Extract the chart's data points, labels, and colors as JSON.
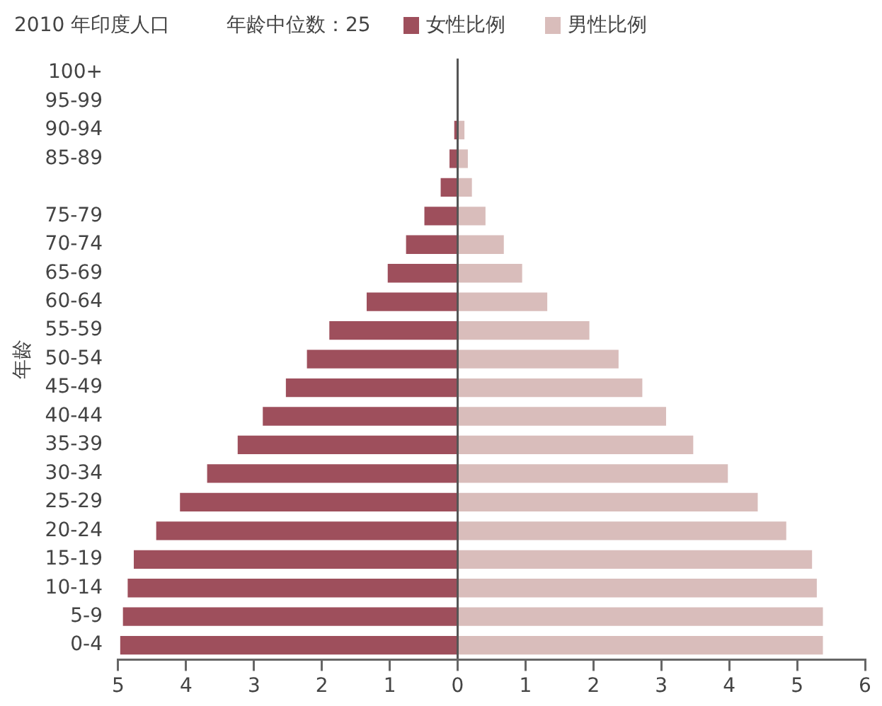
{
  "chart_data": {
    "type": "bar",
    "orientation": "horizontal",
    "stacked": true,
    "title": "2010 年印度人口",
    "ylabel": "年龄",
    "annotations": [
      "年龄中位数：25"
    ],
    "legend": "top",
    "categories": [
      "100+",
      "95-99",
      "90-94",
      "85-89",
      null,
      "75-79",
      "70-74",
      "65-69",
      "60-64",
      "55-59",
      "50-54",
      "45-49",
      "40-44",
      "35-39",
      "30-34",
      "25-29",
      "20-24",
      "15-19",
      "10-14",
      "5-9",
      "0-4"
    ],
    "series": [
      {
        "name": "女性比例",
        "color": "#9e4f5c",
        "values": [
          0,
          0,
          -0.05,
          -0.12,
          -0.25,
          -0.49,
          -0.76,
          -1.03,
          -1.34,
          -1.89,
          -2.22,
          -2.53,
          -2.87,
          -3.24,
          -3.69,
          -4.09,
          -4.44,
          -4.77,
          -4.86,
          -4.93,
          -4.97
        ]
      },
      {
        "name": "男性比例",
        "color": "#d9bdbb",
        "values": [
          0,
          0,
          0.1,
          0.15,
          0.21,
          0.41,
          0.68,
          0.95,
          1.32,
          1.94,
          2.37,
          2.72,
          3.07,
          3.47,
          3.98,
          4.42,
          4.84,
          5.22,
          5.29,
          5.38,
          5.38
        ]
      }
    ],
    "xlim": [
      -5,
      6
    ],
    "xticks": [
      {
        "value": -5,
        "label": "5"
      },
      {
        "value": -4,
        "label": "4"
      },
      {
        "value": -3,
        "label": "3"
      },
      {
        "value": -2,
        "label": "2"
      },
      {
        "value": -1,
        "label": "1"
      },
      0,
      1,
      2,
      3,
      4,
      5,
      6
    ]
  }
}
